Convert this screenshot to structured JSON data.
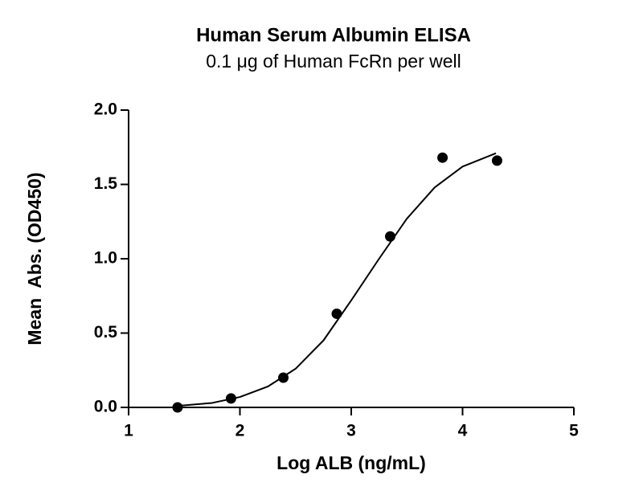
{
  "chart_data": {
    "type": "scatter",
    "title": "Human Serum Albumin ELISA",
    "subtitle": "0.1 μg of Human FcRn per well",
    "x_label": "Log ALB (ng/mL)",
    "y_label": "Mean  Abs. (OD450)",
    "series": [
      {
        "kind": "points",
        "color": "#000000",
        "x": [
          1.44,
          1.92,
          2.39,
          2.87,
          3.35,
          3.82,
          4.31
        ],
        "values": [
          0.0,
          0.06,
          0.2,
          0.63,
          1.15,
          1.68,
          1.66
        ]
      },
      {
        "kind": "line",
        "color": "#000000",
        "x": [
          1.44,
          1.75,
          2.0,
          2.25,
          2.5,
          2.75,
          3.0,
          3.25,
          3.5,
          3.75,
          4.0,
          4.3
        ],
        "values": [
          0.01,
          0.03,
          0.07,
          0.14,
          0.26,
          0.45,
          0.72,
          1.0,
          1.27,
          1.48,
          1.62,
          1.71
        ]
      }
    ],
    "xlim": [
      1,
      5
    ],
    "ylim": [
      0,
      2
    ],
    "xticks": [
      1,
      2,
      3,
      4,
      5
    ],
    "yticks": [
      {
        "value": 0,
        "label": "0.0"
      },
      {
        "value": 0.5,
        "label": "0.5"
      },
      {
        "value": 1,
        "label": "1.0"
      },
      {
        "value": 1.5,
        "label": "1.5"
      },
      {
        "value": 2,
        "label": "2.0"
      }
    ]
  }
}
